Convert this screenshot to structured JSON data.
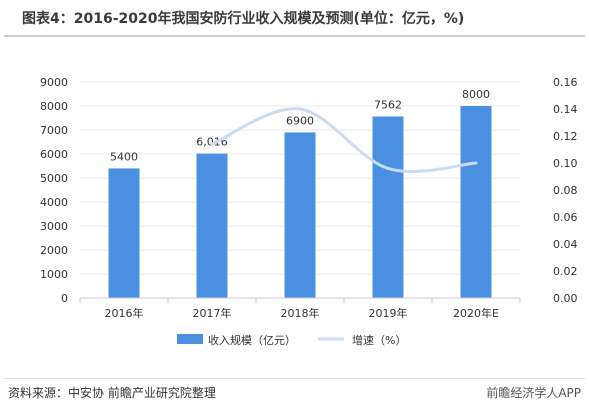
{
  "title": "图表4：2016-2020年我国安防行业收入规模及预测(单位：亿元，%)",
  "source": "资料来源：中安协 前瞻产业研究院整理",
  "brand": "前瞻经济学人APP",
  "colors": {
    "bar": "#4a8fe0",
    "line": "#c9dcf5",
    "grid": "#eeeeee",
    "axis": "#cccccc"
  },
  "chart_data": {
    "type": "bar",
    "categories": [
      "2016年",
      "2017年",
      "2018年",
      "2019年",
      "2020年E"
    ],
    "series": [
      {
        "name": "收入规模（亿元）",
        "type": "bar",
        "axis": "left",
        "values": [
          5400,
          6016,
          6900,
          7562,
          8000
        ],
        "labels": [
          "5400",
          "6,016",
          "6900",
          "7562",
          "8000"
        ]
      },
      {
        "name": "增速（%）",
        "type": "line",
        "axis": "right",
        "values": [
          null,
          0.114,
          0.14,
          0.096,
          0.1
        ]
      }
    ],
    "ylim": [
      0,
      9000
    ],
    "yticks": [
      "0",
      "1000",
      "2000",
      "3000",
      "4000",
      "5000",
      "6000",
      "7000",
      "8000",
      "9000"
    ],
    "y2lim": [
      0,
      0.16
    ],
    "y2ticks": [
      "0.00",
      "0.02",
      "0.04",
      "0.06",
      "0.08",
      "0.10",
      "0.12",
      "0.14",
      "0.16"
    ],
    "legend_position": "bottom-center"
  }
}
